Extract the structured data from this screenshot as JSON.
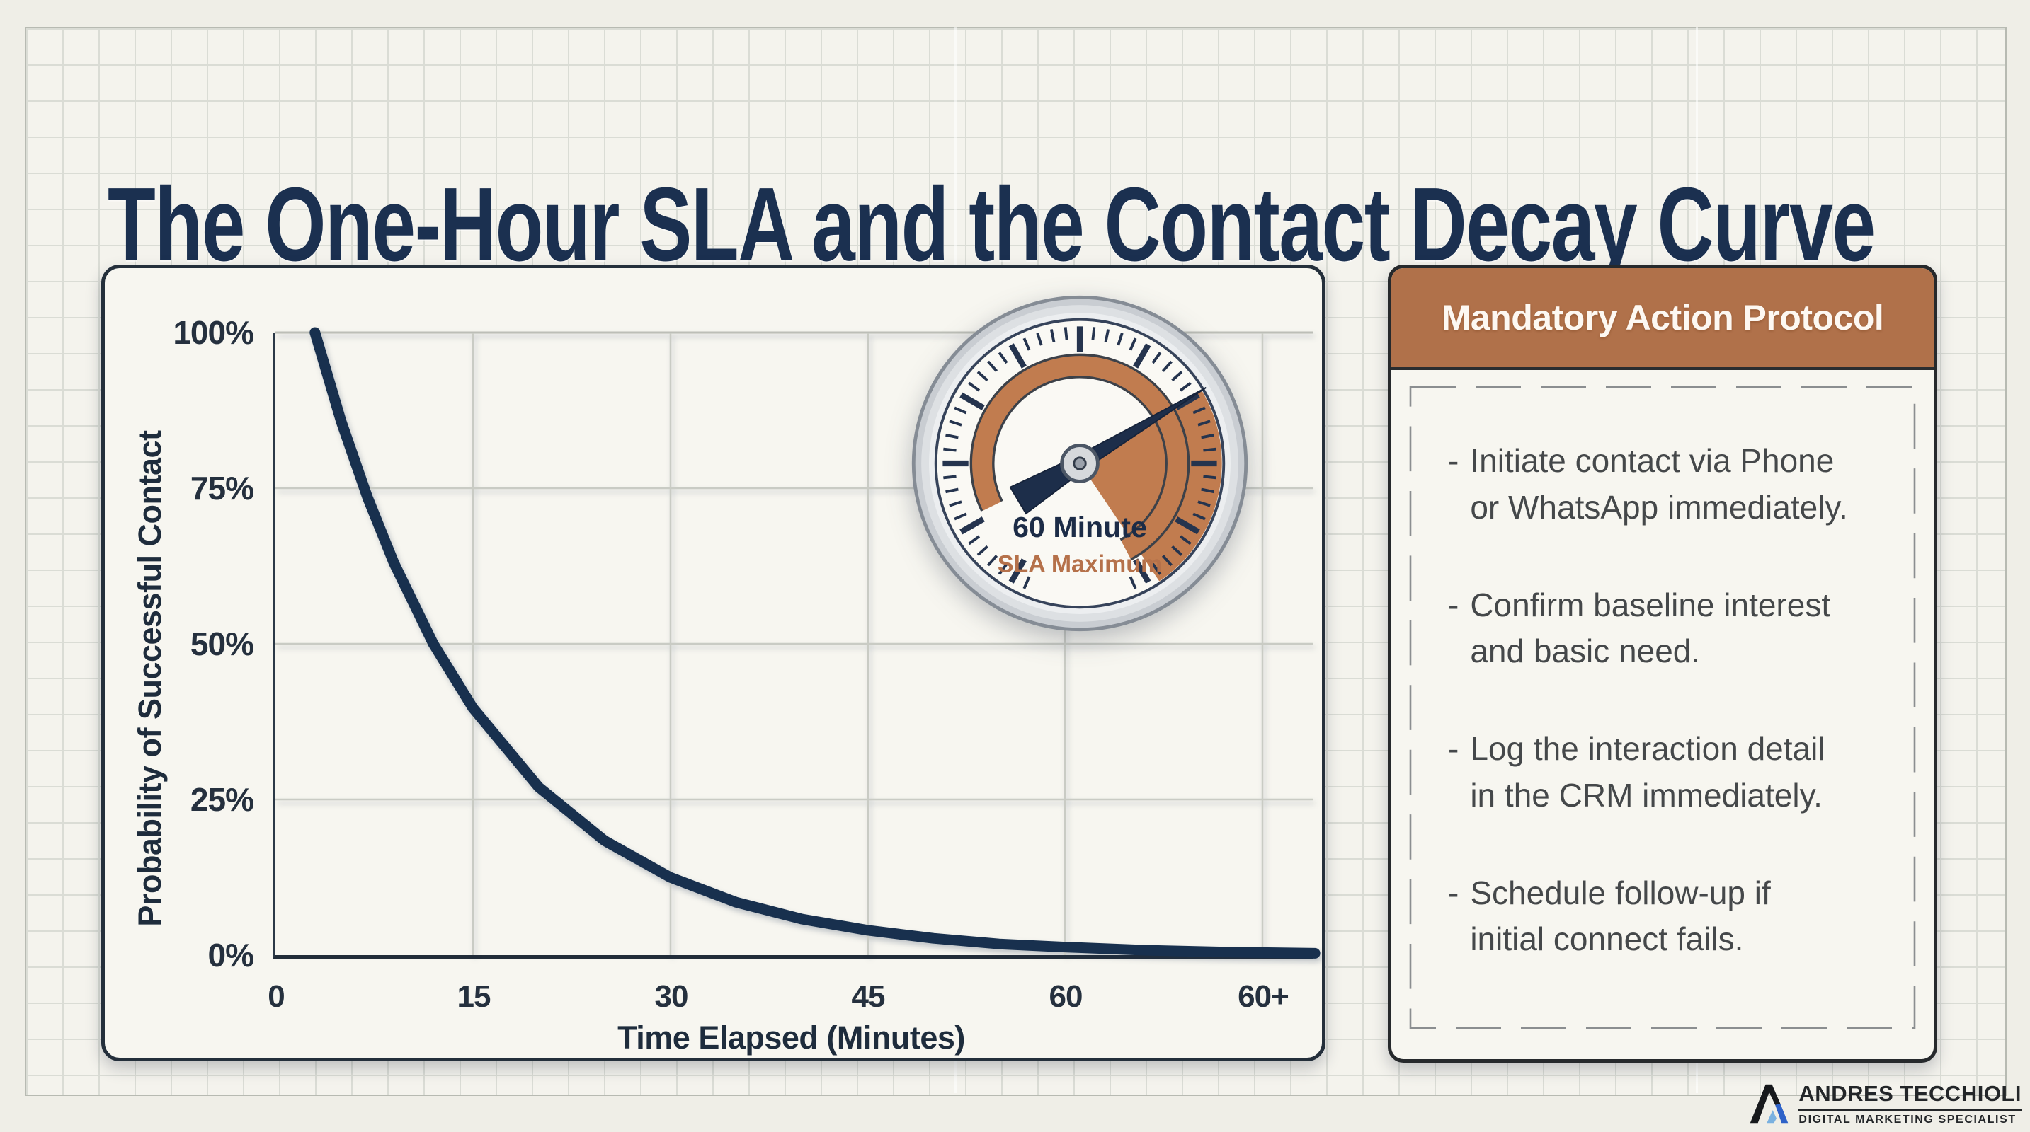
{
  "title": "The One-Hour SLA and the Contact Decay Curve",
  "palette": {
    "navy": "#1b2f4b",
    "copper": "#b5714a",
    "gauge_copper": "#c17c4f",
    "paper": "#f4f3ed",
    "card": "#f7f6f0",
    "text_gray": "#45484a"
  },
  "chart_data": {
    "type": "line",
    "title": "Contact Decay Curve",
    "xlabel": "Time Elapsed (Minutes)",
    "ylabel": "Probability of Successful Contact",
    "x_ticks": [
      "0",
      "15",
      "30",
      "45",
      "60",
      "60+"
    ],
    "y_ticks": [
      "100%",
      "75%",
      "50%",
      "25%",
      "0%"
    ],
    "ylim": [
      0,
      100
    ],
    "x_minutes_per_tick": 15,
    "grid": true,
    "legend": "none",
    "line_color": "#18304e",
    "series": [
      {
        "name": "Probability of Successful Contact",
        "x": [
          3,
          5,
          7,
          9,
          12,
          15,
          20,
          25,
          30,
          35,
          40,
          45,
          50,
          55,
          60,
          66,
          72,
          79
        ],
        "y": [
          100,
          85.7,
          73.5,
          63,
          50,
          39.7,
          27,
          18.4,
          12.5,
          8.5,
          5.8,
          4,
          2.7,
          1.8,
          1.3,
          0.8,
          0.5,
          0.3
        ]
      }
    ]
  },
  "gauge": {
    "value_label": "60 Minute",
    "sub_label": "SLA Maximum",
    "needle_minutes": 60
  },
  "panel": {
    "header": "Mandatory Action Protocol",
    "bullet_char": "-",
    "items": [
      {
        "lines": [
          "Initiate contact via Phone",
          "or WhatsApp immediately."
        ]
      },
      {
        "lines": [
          "Confirm baseline interest",
          "and basic need."
        ]
      },
      {
        "lines": [
          "Log the interaction detail",
          "in the CRM immediately."
        ]
      },
      {
        "lines": [
          "Schedule follow-up if",
          "initial connect fails."
        ]
      }
    ]
  },
  "logo": {
    "name": "ANDRES TECCHIOLI",
    "tagline": "DIGITAL MARKETING SPECIALIST"
  }
}
